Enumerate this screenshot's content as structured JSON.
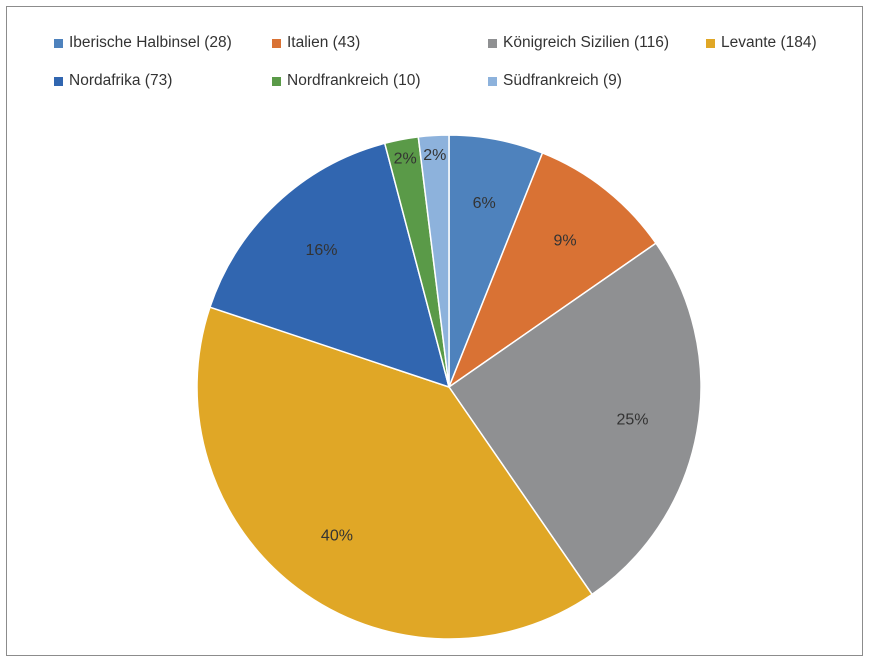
{
  "chart_data": {
    "type": "pie",
    "title": "",
    "legend_position": "top",
    "series": [
      {
        "categories": [
          "Iberische Halbinsel (28)",
          "Italien (43)",
          "Königreich Sizilien (116)",
          "Levante (184)",
          "Nordafrika (73)",
          "Nordfrankreich (10)",
          "Südfrankreich (9)"
        ],
        "values": [
          28,
          43,
          116,
          184,
          73,
          10,
          9
        ],
        "labels": [
          "6%",
          "9%",
          "25%",
          "40%",
          "16%",
          "2%",
          "2%"
        ],
        "colors": [
          "#4e82bd",
          "#d97234",
          "#8f9092",
          "#e0a726",
          "#3166b0",
          "#5a9a48",
          "#8db2dc"
        ]
      }
    ]
  }
}
